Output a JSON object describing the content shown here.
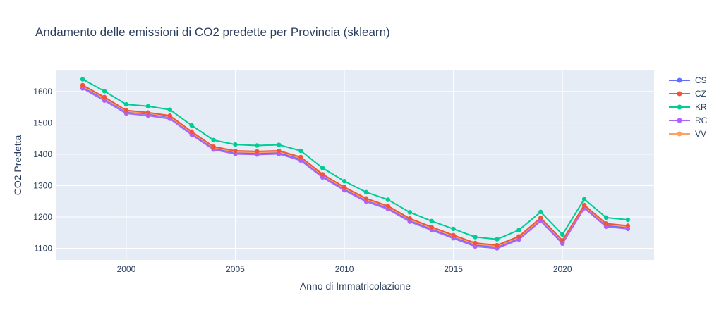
{
  "chart_data": {
    "type": "line",
    "title": "Andamento delle emissioni di CO2 predette per Provincia (sklearn)",
    "xlabel": "Anno di Immatricolazione",
    "ylabel": "CO2 Predetta",
    "xlim": [
      1996.8,
      2024.2
    ],
    "ylim": [
      1063,
      1667
    ],
    "xticks": [
      2000,
      2005,
      2010,
      2015,
      2020
    ],
    "yticks": [
      1100,
      1200,
      1300,
      1400,
      1500,
      1600
    ],
    "grid": true,
    "legend_position": "right",
    "x": [
      1998,
      1999,
      2000,
      2001,
      2002,
      2003,
      2004,
      2005,
      2006,
      2007,
      2008,
      2009,
      2010,
      2011,
      2012,
      2013,
      2014,
      2015,
      2016,
      2017,
      2018,
      2019,
      2020,
      2021,
      2022,
      2023
    ],
    "series": [
      {
        "name": "CS",
        "color": "#636efa",
        "values": [
          1614,
          1577,
          1535,
          1528,
          1518,
          1467,
          1419,
          1405,
          1403,
          1405,
          1385,
          1330,
          1289,
          1254,
          1229,
          1189,
          1162,
          1136,
          1111,
          1104,
          1132,
          1191,
          1119,
          1232,
          1173,
          1166
        ]
      },
      {
        "name": "CZ",
        "color": "#ef553b",
        "values": [
          1620,
          1582,
          1540,
          1533,
          1523,
          1472,
          1424,
          1411,
          1409,
          1411,
          1391,
          1336,
          1295,
          1259,
          1235,
          1195,
          1168,
          1142,
          1117,
          1110,
          1138,
          1197,
          1125,
          1238,
          1179,
          1172
        ]
      },
      {
        "name": "KR",
        "color": "#00cc96",
        "values": [
          1639,
          1601,
          1559,
          1553,
          1542,
          1492,
          1445,
          1431,
          1428,
          1430,
          1411,
          1356,
          1314,
          1279,
          1255,
          1215,
          1187,
          1162,
          1136,
          1129,
          1158,
          1216,
          1144,
          1257,
          1198,
          1191
        ]
      },
      {
        "name": "RC",
        "color": "#ab63fa",
        "values": [
          1610,
          1571,
          1530,
          1523,
          1513,
          1462,
          1415,
          1401,
          1399,
          1401,
          1380,
          1326,
          1285,
          1249,
          1225,
          1185,
          1158,
          1132,
          1106,
          1100,
          1128,
          1187,
          1115,
          1228,
          1169,
          1162
        ]
      },
      {
        "name": "VV",
        "color": "#ffa15a",
        "values": [
          1617,
          1579,
          1537,
          1531,
          1520,
          1469,
          1422,
          1408,
          1406,
          1408,
          1388,
          1333,
          1292,
          1256,
          1232,
          1192,
          1165,
          1139,
          1114,
          1107,
          1135,
          1194,
          1122,
          1235,
          1176,
          1169
        ]
      }
    ]
  },
  "colors": {
    "plot_background": "#e5ecf6",
    "grid": "#ffffff",
    "text": "#2a3f5f"
  }
}
